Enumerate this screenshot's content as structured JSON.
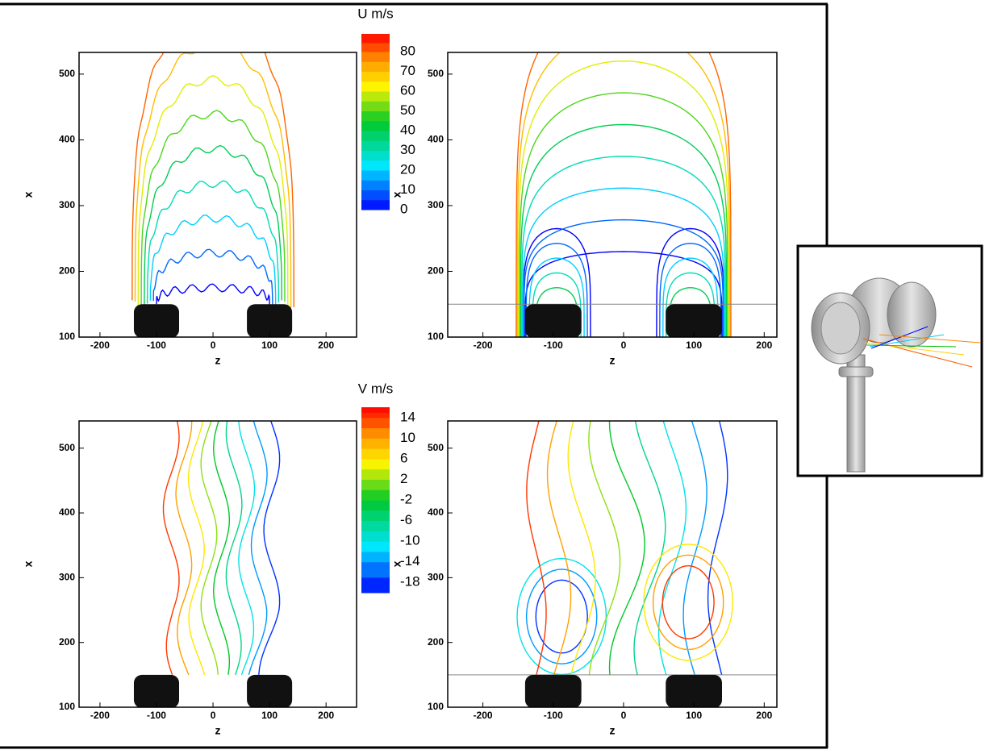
{
  "chart_data": [
    {
      "type": "contour",
      "xlabel": "z",
      "ylabel": "x",
      "xlim": [
        -237,
        254
      ],
      "ylim": [
        100,
        533
      ],
      "xticks": [
        -200,
        -100,
        0,
        100,
        200
      ],
      "yticks": [
        100,
        200,
        300,
        400,
        500
      ],
      "colorbar_title": "U m/s",
      "colorbar_lim": [
        0,
        89
      ],
      "colorbar_ticks": [
        0,
        10,
        20,
        30,
        40,
        50,
        60,
        70,
        80
      ]
    },
    {
      "type": "contour",
      "xlabel": "z",
      "ylabel": "x",
      "xlim": [
        -250,
        218
      ],
      "ylim": [
        100,
        533
      ],
      "xticks": [
        -200,
        -100,
        0,
        100,
        200
      ],
      "yticks": [
        100,
        200,
        300,
        400,
        500
      ]
    },
    {
      "type": "contour",
      "xlabel": "z",
      "ylabel": "x",
      "xlim": [
        -237,
        254
      ],
      "ylim": [
        100,
        542
      ],
      "xticks": [
        -200,
        -100,
        0,
        100,
        200
      ],
      "yticks": [
        100,
        200,
        300,
        400,
        500
      ],
      "colorbar_title": "V m/s",
      "colorbar_lim": [
        -20,
        16
      ],
      "colorbar_ticks": [
        -18,
        -14,
        -10,
        -6,
        -2,
        2,
        6,
        10,
        14
      ]
    },
    {
      "type": "contour",
      "xlabel": "z",
      "ylabel": "x",
      "xlim": [
        -250,
        218
      ],
      "ylim": [
        100,
        542
      ],
      "xticks": [
        -200,
        -100,
        0,
        100,
        200
      ],
      "yticks": [
        100,
        200,
        300,
        400,
        500
      ]
    }
  ]
}
